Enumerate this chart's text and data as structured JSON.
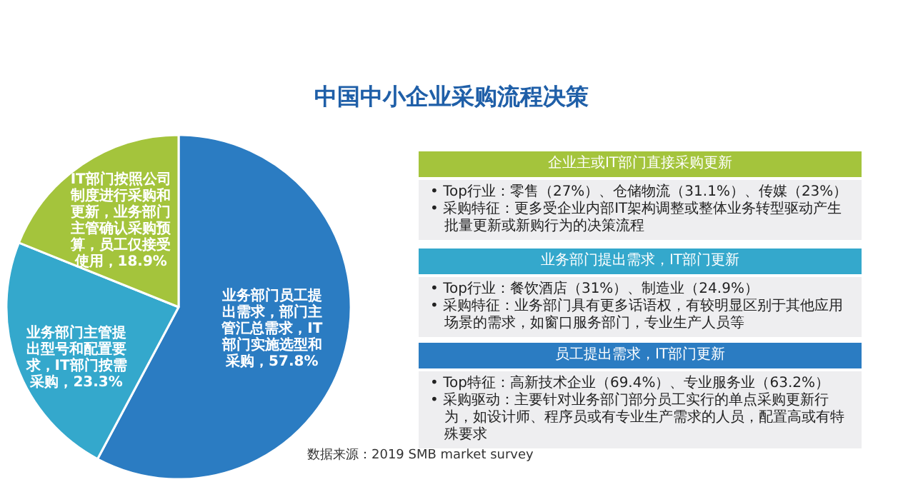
{
  "chart_data": [
    {
      "type": "pie",
      "title": "中国中小企业采购流程决策",
      "categories": [
        "业务部门员工提出需求，部门主管汇总需求，IT部门实施选型和采购",
        "业务部门主管提出型号和配置要求，IT部门按需采购",
        "IT部门按照公司制度进行采购和更新，业务部门主管确认采购预算，员工仅接受使用"
      ],
      "values": [
        57.8,
        23.3,
        18.9
      ],
      "value_labels": [
        "57.8%",
        "23.3%",
        "18.9%"
      ],
      "colors": [
        "#2b7cc2",
        "#34a8cc",
        "#a4c43c"
      ],
      "legend": false,
      "annotations": [
        "数据来源：2019 SMB market survey"
      ]
    },
    {
      "type": "other",
      "title": "企业主或IT部门直接采购更新",
      "color": "#a4c43c",
      "annotations": [
        "• Top行业：零售（27%）、仓储物流（31.1%）、传媒（23%）",
        "• 采购特征：更多受企业内部IT架构调整或整体业务转型驱动产生批量更新或新购行为的决策流程"
      ]
    },
    {
      "type": "other",
      "title": "业务部门提出需求，IT部门更新",
      "color": "#34a8cc",
      "annotations": [
        "• Top行业：餐饮酒店（31%）、制造业（24.9%）",
        "• 采购特征：业务部门具有更多话语权，有较明显区别于其他应用场景的需求，如窗口服务部门，专业生产人员等"
      ]
    },
    {
      "type": "other",
      "title": "员工提出需求，IT部门更新",
      "color": "#2b7cc2",
      "annotations": [
        "• Top特征：高新技术企业（69.4%）、专业服务业（63.2%）",
        "• 采购驱动：主要针对业务部门部分员工实行的单点采购更新行为，如设计师、程序员或有专业生产需求的人员，配置高或有特殊要求"
      ]
    }
  ]
}
